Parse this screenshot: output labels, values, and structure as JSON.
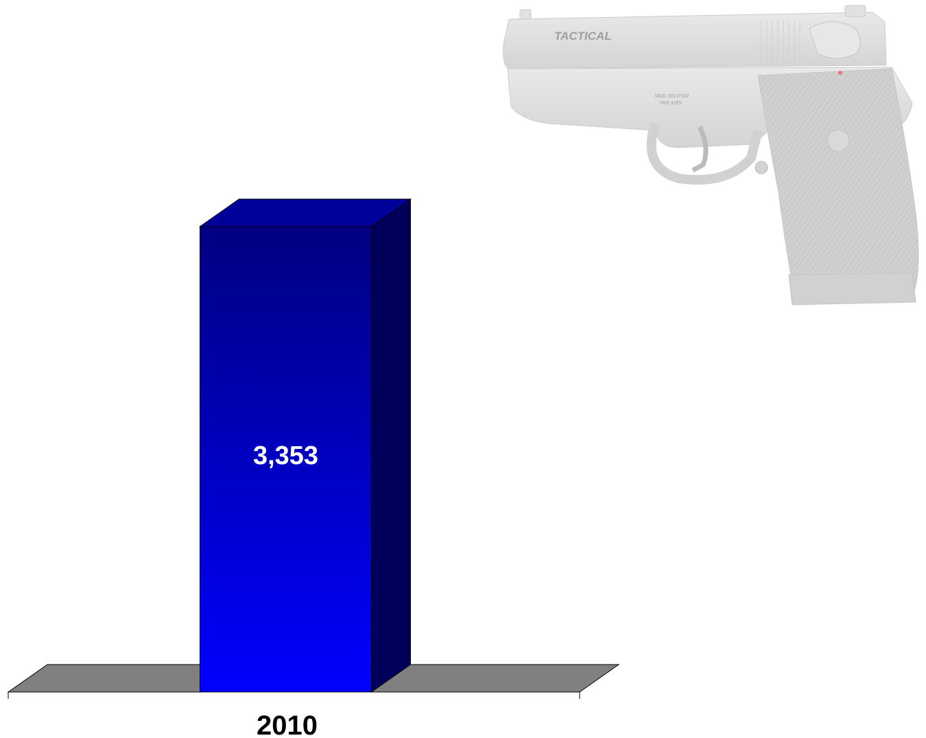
{
  "chart_data": {
    "type": "bar",
    "categories": [
      "2010"
    ],
    "values": [
      3353
    ],
    "value_labels": [
      "3,353"
    ],
    "title": "",
    "xlabel": "",
    "ylabel": "",
    "ylim": [
      0,
      3353
    ],
    "grid": false,
    "three_d": true,
    "colors": {
      "bar_front_top": "#000080",
      "bar_front_bottom": "#0000ff",
      "bar_side": "#00005a",
      "bar_top": "#00009a",
      "floor": "#808080",
      "outline": "#000000"
    }
  },
  "illustration": {
    "icon": "pistol-icon",
    "engraving": "TACTICAL"
  }
}
